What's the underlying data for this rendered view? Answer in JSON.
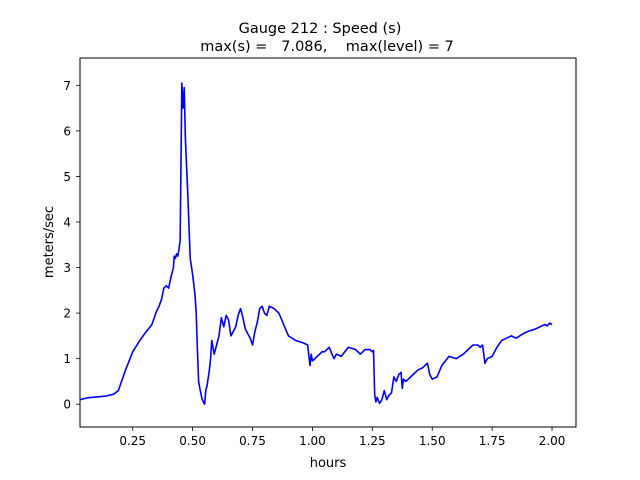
{
  "chart_data": {
    "type": "line",
    "title_line1": "Gauge 212 : Speed (s)",
    "title_line2": "max(s) =   7.086,    max(level) = 7",
    "xlabel": "hours",
    "ylabel": "meters/sec",
    "xlim": [
      0.03,
      2.1
    ],
    "ylim": [
      -0.5,
      7.6
    ],
    "xticks": [
      0.25,
      0.5,
      0.75,
      1.0,
      1.25,
      1.5,
      1.75,
      2.0
    ],
    "xtick_labels": [
      "0.25",
      "0.50",
      "0.75",
      "1.00",
      "1.25",
      "1.50",
      "1.75",
      "2.00"
    ],
    "yticks": [
      0,
      1,
      2,
      3,
      4,
      5,
      6,
      7
    ],
    "ytick_labels": [
      "0",
      "1",
      "2",
      "3",
      "4",
      "5",
      "6",
      "7"
    ],
    "grid": false,
    "legend": "none",
    "series": [
      {
        "color": "#0000ff",
        "x": [
          0.03,
          0.06,
          0.1,
          0.14,
          0.17,
          0.19,
          0.2,
          0.22,
          0.25,
          0.28,
          0.3,
          0.33,
          0.35,
          0.36,
          0.37,
          0.38,
          0.39,
          0.4,
          0.41,
          0.42,
          0.423,
          0.428,
          0.433,
          0.438,
          0.443,
          0.448,
          0.455,
          0.46,
          0.465,
          0.47,
          0.48,
          0.49,
          0.5,
          0.51,
          0.515,
          0.52,
          0.525,
          0.53,
          0.54,
          0.55,
          0.555,
          0.56,
          0.57,
          0.575,
          0.58,
          0.59,
          0.6,
          0.61,
          0.62,
          0.63,
          0.64,
          0.65,
          0.66,
          0.67,
          0.68,
          0.69,
          0.7,
          0.71,
          0.72,
          0.73,
          0.74,
          0.75,
          0.76,
          0.77,
          0.78,
          0.79,
          0.8,
          0.81,
          0.82,
          0.84,
          0.86,
          0.88,
          0.9,
          0.93,
          0.96,
          0.98,
          0.99,
          0.995,
          1.0,
          1.01,
          1.03,
          1.04,
          1.05,
          1.07,
          1.09,
          1.1,
          1.12,
          1.15,
          1.18,
          1.2,
          1.22,
          1.24,
          1.25,
          1.255,
          1.26,
          1.265,
          1.27,
          1.28,
          1.29,
          1.3,
          1.31,
          1.32,
          1.33,
          1.34,
          1.35,
          1.36,
          1.37,
          1.375,
          1.38,
          1.39,
          1.4,
          1.42,
          1.44,
          1.46,
          1.48,
          1.49,
          1.5,
          1.52,
          1.54,
          1.57,
          1.6,
          1.63,
          1.65,
          1.67,
          1.69,
          1.7,
          1.71,
          1.72,
          1.73,
          1.75,
          1.77,
          1.79,
          1.81,
          1.83,
          1.85,
          1.88,
          1.9,
          1.93,
          1.95,
          1.97,
          1.98,
          1.99,
          2.0
        ],
        "y": [
          0.1,
          0.14,
          0.16,
          0.18,
          0.22,
          0.3,
          0.45,
          0.75,
          1.15,
          1.4,
          1.55,
          1.75,
          2.05,
          2.15,
          2.3,
          2.55,
          2.6,
          2.55,
          2.8,
          3.0,
          3.25,
          3.2,
          3.3,
          3.25,
          3.4,
          3.6,
          7.05,
          6.5,
          6.95,
          5.8,
          4.6,
          3.2,
          2.85,
          2.4,
          2.0,
          1.2,
          0.5,
          0.35,
          0.1,
          0.0,
          0.3,
          0.4,
          0.75,
          1.0,
          1.4,
          1.1,
          1.3,
          1.5,
          1.9,
          1.7,
          1.95,
          1.85,
          1.5,
          1.6,
          1.7,
          1.95,
          2.1,
          1.9,
          1.65,
          1.55,
          1.45,
          1.3,
          1.6,
          1.8,
          2.1,
          2.15,
          2.0,
          1.95,
          2.15,
          2.1,
          2.0,
          1.75,
          1.5,
          1.4,
          1.35,
          1.3,
          0.85,
          1.1,
          0.95,
          1.0,
          1.1,
          1.15,
          1.15,
          1.25,
          1.0,
          1.1,
          1.05,
          1.25,
          1.2,
          1.1,
          1.2,
          1.2,
          1.15,
          1.18,
          0.2,
          0.05,
          0.15,
          0.02,
          0.1,
          0.3,
          0.1,
          0.2,
          0.25,
          0.6,
          0.5,
          0.65,
          0.7,
          0.35,
          0.55,
          0.5,
          0.55,
          0.65,
          0.75,
          0.8,
          0.9,
          0.65,
          0.55,
          0.6,
          0.85,
          1.05,
          1.0,
          1.1,
          1.2,
          1.3,
          1.3,
          1.25,
          1.3,
          0.9,
          1.0,
          1.05,
          1.25,
          1.4,
          1.45,
          1.5,
          1.45,
          1.55,
          1.6,
          1.65,
          1.7,
          1.75,
          1.72,
          1.78,
          1.75
        ]
      }
    ]
  }
}
